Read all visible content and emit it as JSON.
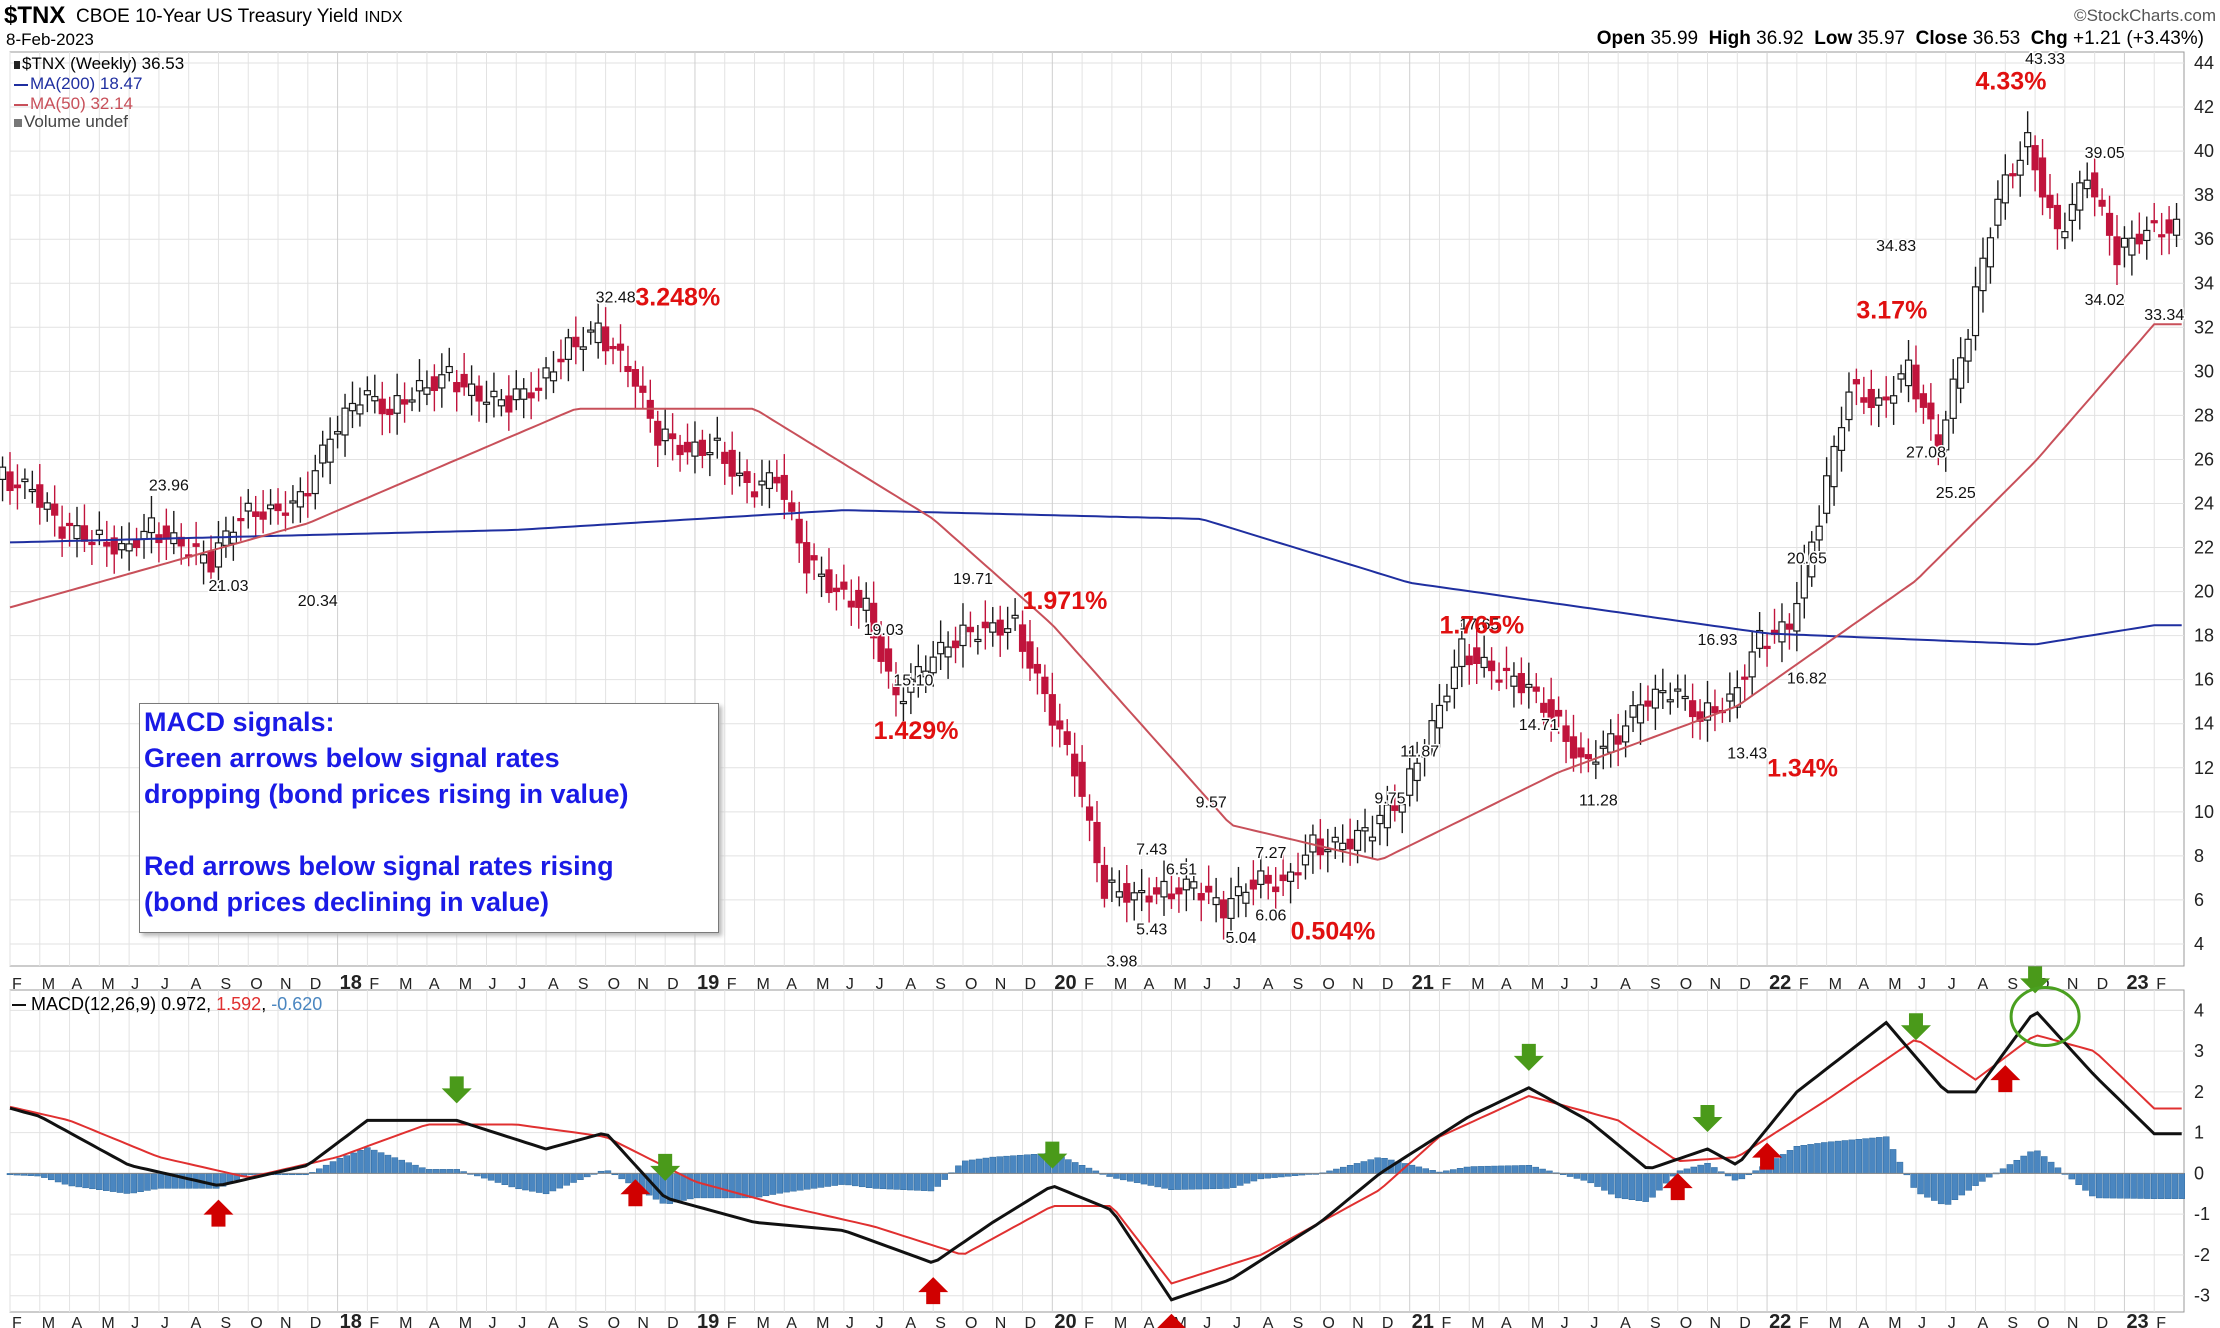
{
  "header": {
    "symbol": "$TNX",
    "name": "CBOE 10-Year US Treasury Yield",
    "exchange": "INDX",
    "date": "8-Feb-2023",
    "copyright": "©StockCharts.com",
    "open_label": "Open",
    "open": "35.99",
    "high_label": "High",
    "high": "36.92",
    "low_label": "Low",
    "low": "35.97",
    "close_label": "Close",
    "close": "36.53",
    "chg_label": "Chg",
    "chg": "+1.21 (+3.43%)"
  },
  "legend": {
    "price": "$TNX (Weekly) 36.53",
    "ma200": "MA(200) 18.47",
    "ma50": "MA(50) 32.14",
    "volume": "Volume undef"
  },
  "colors": {
    "candle_up": "#1a1a1a",
    "candle_down": "#c0143c",
    "ma200": "#1f2fa0",
    "ma50": "#c8505a",
    "macd_line": "#111111",
    "signal_line": "#e03030",
    "histogram": "#4a86c0",
    "annotation_red": "#e01010",
    "annotation_blue": "#1a1ae6",
    "arrow_green": "#4a9a1a",
    "arrow_red": "#d00000",
    "grid": "#e2e2e2"
  },
  "note": {
    "line1": "MACD signals:",
    "line2": "Green arrows below signal rates",
    "line3": "dropping (bond prices rising in value)",
    "line4": "",
    "line5": "Red arrows below signal rates rising",
    "line6": "(bond prices declining in value)"
  },
  "macd_legend": {
    "label": "MACD(12,26,9)",
    "macd": "0.972",
    "signal": "1.592",
    "hist": "-0.620"
  },
  "chart_data": [
    {
      "type": "line",
      "title": "$TNX (Weekly)",
      "y_axis_side": "right",
      "ylim": [
        3,
        44.5
      ],
      "y_ticks": [
        4,
        6,
        8,
        10,
        12,
        14,
        16,
        18,
        20,
        22,
        24,
        26,
        28,
        30,
        32,
        34,
        36,
        38,
        40,
        42,
        44
      ],
      "x_ticks": [
        "F",
        "M",
        "A",
        "M",
        "J",
        "J",
        "A",
        "S",
        "O",
        "N",
        "D",
        "18",
        "F",
        "M",
        "A",
        "M",
        "J",
        "J",
        "A",
        "S",
        "O",
        "N",
        "D",
        "19",
        "F",
        "M",
        "A",
        "M",
        "J",
        "J",
        "A",
        "S",
        "O",
        "N",
        "D",
        "20",
        "F",
        "M",
        "A",
        "M",
        "J",
        "J",
        "A",
        "S",
        "O",
        "N",
        "D",
        "21",
        "F",
        "M",
        "A",
        "M",
        "J",
        "J",
        "A",
        "S",
        "O",
        "N",
        "D",
        "22",
        "F",
        "M",
        "A",
        "M",
        "J",
        "J",
        "A",
        "S",
        "O",
        "N",
        "D",
        "23",
        "F"
      ],
      "x_year_ticks": [
        "18",
        "19",
        "20",
        "21",
        "22",
        "23"
      ],
      "x_range": [
        "2017-01",
        "2023-02"
      ],
      "grid": true,
      "series": [
        {
          "name": "$TNX (Weekly)",
          "style": "candlestick",
          "x": [
            "2017-01",
            "2017-02",
            "2017-03",
            "2017-04",
            "2017-05",
            "2017-06",
            "2017-07",
            "2017-08",
            "2017-09",
            "2017-10",
            "2017-11",
            "2017-12",
            "2018-01",
            "2018-02",
            "2018-03",
            "2018-04",
            "2018-05",
            "2018-06",
            "2018-07",
            "2018-08",
            "2018-09",
            "2018-10",
            "2018-11",
            "2018-12",
            "2019-01",
            "2019-02",
            "2019-03",
            "2019-04",
            "2019-05",
            "2019-06",
            "2019-07",
            "2019-08",
            "2019-09",
            "2019-10",
            "2019-11",
            "2019-12",
            "2020-01",
            "2020-02",
            "2020-03",
            "2020-04",
            "2020-05",
            "2020-06",
            "2020-07",
            "2020-08",
            "2020-09",
            "2020-10",
            "2020-11",
            "2020-12",
            "2021-01",
            "2021-02",
            "2021-03",
            "2021-04",
            "2021-05",
            "2021-06",
            "2021-07",
            "2021-08",
            "2021-09",
            "2021-10",
            "2021-11",
            "2021-12",
            "2022-01",
            "2022-02",
            "2022-03",
            "2022-04",
            "2022-05",
            "2022-06",
            "2022-07",
            "2022-08",
            "2022-09",
            "2022-10",
            "2022-11",
            "2022-12",
            "2023-01",
            "2023-02"
          ],
          "values": [
            24.2,
            25.2,
            24.5,
            22.8,
            22.5,
            22.0,
            22.9,
            22.0,
            21.3,
            23.6,
            23.7,
            24.1,
            26.9,
            28.9,
            28.3,
            29.3,
            29.8,
            28.7,
            28.6,
            29.4,
            31.2,
            31.8,
            30.1,
            27.1,
            26.5,
            26.6,
            24.6,
            25.1,
            21.3,
            20.1,
            19.3,
            15.0,
            16.6,
            17.9,
            18.4,
            18.5,
            15.1,
            11.9,
            6.5,
            6.3,
            6.4,
            6.6,
            5.5,
            6.9,
            6.8,
            8.5,
            8.4,
            9.2,
            10.7,
            14.0,
            17.4,
            16.3,
            15.8,
            14.5,
            12.3,
            13.1,
            14.8,
            15.5,
            14.4,
            15.1,
            17.8,
            18.3,
            23.4,
            29.3,
            28.5,
            30.1,
            26.5,
            31.9,
            38.0,
            40.5,
            36.1,
            38.8,
            35.3,
            36.53
          ]
        },
        {
          "name": "MA(200)",
          "x": [
            "2017-01",
            "2018-07",
            "2019-06",
            "2020-06",
            "2021-01",
            "2022-01",
            "2022-10",
            "2023-02"
          ],
          "values": [
            22.2,
            22.8,
            23.7,
            23.3,
            20.4,
            18.1,
            17.6,
            18.47
          ]
        },
        {
          "name": "MA(50)",
          "x": [
            "2017-01",
            "2017-12",
            "2018-09",
            "2019-03",
            "2019-09",
            "2020-01",
            "2020-07",
            "2020-12",
            "2021-06",
            "2021-12",
            "2022-06",
            "2022-10",
            "2023-02"
          ],
          "values": [
            18.9,
            23.1,
            28.3,
            28.3,
            23.3,
            18.5,
            9.4,
            7.8,
            11.8,
            14.8,
            20.5,
            25.9,
            32.14
          ]
        }
      ],
      "point_labels": [
        {
          "x": "2017-09",
          "value": 21.03,
          "text": "21.03"
        },
        {
          "x": "2017-12",
          "value": 20.34,
          "text": "20.34"
        },
        {
          "x": "2017-07",
          "value": 23.96,
          "text": "23.96"
        },
        {
          "x": "2018-10",
          "value": 32.48,
          "text": "32.48"
        },
        {
          "x": "2019-08",
          "value": 15.1,
          "text": "15.10"
        },
        {
          "x": "2019-07",
          "value": 19.03,
          "text": "19.03"
        },
        {
          "x": "2019-10",
          "value": 19.71,
          "text": "19.71"
        },
        {
          "x": "2020-03",
          "value": 3.98,
          "text": "3.98"
        },
        {
          "x": "2020-04",
          "value": 5.43,
          "text": "5.43"
        },
        {
          "x": "2020-04",
          "value": 7.43,
          "text": "7.43"
        },
        {
          "x": "2020-06",
          "value": 9.57,
          "text": "9.57"
        },
        {
          "x": "2020-05",
          "value": 6.51,
          "text": "6.51"
        },
        {
          "x": "2020-07",
          "value": 5.04,
          "text": "5.04"
        },
        {
          "x": "2020-08",
          "value": 6.06,
          "text": "6.06"
        },
        {
          "x": "2020-08",
          "value": 7.27,
          "text": "7.27"
        },
        {
          "x": "2020-12",
          "value": 9.75,
          "text": "9.75"
        },
        {
          "x": "2021-01",
          "value": 11.87,
          "text": "11.87"
        },
        {
          "x": "2021-03",
          "value": 17.65,
          "text": "17.65"
        },
        {
          "x": "2021-05",
          "value": 14.71,
          "text": "14.71"
        },
        {
          "x": "2021-07",
          "value": 11.28,
          "text": "11.28"
        },
        {
          "x": "2021-11",
          "value": 16.93,
          "text": "16.93"
        },
        {
          "x": "2021-12",
          "value": 13.43,
          "text": "13.43"
        },
        {
          "x": "2022-02",
          "value": 20.65,
          "text": "20.65"
        },
        {
          "x": "2022-02",
          "value": 16.82,
          "text": "16.82"
        },
        {
          "x": "2022-05",
          "value": 34.83,
          "text": "34.83"
        },
        {
          "x": "2022-06",
          "value": 27.08,
          "text": "27.08"
        },
        {
          "x": "2022-07",
          "value": 25.25,
          "text": "25.25"
        },
        {
          "x": "2022-10",
          "value": 43.33,
          "text": "43.33"
        },
        {
          "x": "2022-12",
          "value": 39.05,
          "text": "39.05"
        },
        {
          "x": "2022-12",
          "value": 34.02,
          "text": "34.02"
        },
        {
          "x": "2023-02",
          "value": 33.34,
          "text": "33.34"
        }
      ],
      "annotations": [
        "3.248%",
        "1.429%",
        "1.971%",
        "0.504%",
        "1.765%",
        "1.34%",
        "3.17%",
        "4.33%"
      ]
    },
    {
      "type": "line",
      "title": "MACD(12,26,9)",
      "y_axis_side": "right",
      "ylim": [
        -3.4,
        4.5
      ],
      "y_ticks": [
        -3,
        -2,
        -1,
        0,
        1,
        2,
        3,
        4
      ],
      "x_range": [
        "2017-01",
        "2023-02"
      ],
      "grid": true,
      "series": [
        {
          "name": "MACD",
          "x": [
            "2017-01",
            "2017-03",
            "2017-06",
            "2017-09",
            "2017-12",
            "2018-02",
            "2018-05",
            "2018-08",
            "2018-10",
            "2018-12",
            "2019-03",
            "2019-06",
            "2019-09",
            "2019-11",
            "2020-01",
            "2020-03",
            "2020-05",
            "2020-07",
            "2020-10",
            "2020-12",
            "2021-03",
            "2021-05",
            "2021-07",
            "2021-09",
            "2021-11",
            "2021-12",
            "2022-02",
            "2022-05",
            "2022-07",
            "2022-08",
            "2022-10",
            "2022-12",
            "2023-02"
          ],
          "values": [
            1.8,
            1.4,
            0.2,
            -0.3,
            0.2,
            1.3,
            1.3,
            0.6,
            1.0,
            -0.6,
            -1.2,
            -1.4,
            -2.2,
            -1.2,
            -0.3,
            -0.9,
            -3.1,
            -2.6,
            -1.2,
            0.0,
            1.4,
            2.1,
            1.3,
            0.1,
            0.6,
            0.2,
            2.0,
            3.7,
            2.0,
            2.0,
            4.0,
            2.4,
            0.972
          ]
        },
        {
          "name": "Signal",
          "x": [
            "2017-01",
            "2017-04",
            "2017-07",
            "2017-10",
            "2018-01",
            "2018-04",
            "2018-07",
            "2018-10",
            "2019-01",
            "2019-04",
            "2019-07",
            "2019-10",
            "2020-01",
            "2020-03",
            "2020-05",
            "2020-08",
            "2020-12",
            "2021-02",
            "2021-05",
            "2021-08",
            "2021-10",
            "2021-12",
            "2022-03",
            "2022-06",
            "2022-08",
            "2022-10",
            "2022-12",
            "2023-02"
          ],
          "values": [
            1.8,
            1.3,
            0.4,
            -0.1,
            0.4,
            1.2,
            1.2,
            0.9,
            -0.2,
            -0.8,
            -1.3,
            -2.0,
            -0.8,
            -0.8,
            -2.7,
            -2.0,
            -0.4,
            0.9,
            1.9,
            1.3,
            0.3,
            0.4,
            1.8,
            3.3,
            2.3,
            3.4,
            3.0,
            1.592
          ]
        },
        {
          "name": "Histogram",
          "style": "bar"
        }
      ],
      "arrows": [
        {
          "x": "2017-01",
          "color": "green",
          "dir": "down"
        },
        {
          "x": "2017-09",
          "color": "red",
          "dir": "up"
        },
        {
          "x": "2018-05",
          "color": "green",
          "dir": "down"
        },
        {
          "x": "2018-11",
          "color": "red",
          "dir": "up"
        },
        {
          "x": "2018-12",
          "color": "green",
          "dir": "down"
        },
        {
          "x": "2019-09",
          "color": "red",
          "dir": "up"
        },
        {
          "x": "2020-01",
          "color": "green",
          "dir": "down"
        },
        {
          "x": "2020-05",
          "color": "red",
          "dir": "up"
        },
        {
          "x": "2021-05",
          "color": "green",
          "dir": "down"
        },
        {
          "x": "2021-10",
          "color": "red",
          "dir": "up"
        },
        {
          "x": "2021-11",
          "color": "green",
          "dir": "down"
        },
        {
          "x": "2022-01",
          "color": "red",
          "dir": "up"
        },
        {
          "x": "2022-06",
          "color": "green",
          "dir": "down"
        },
        {
          "x": "2022-09",
          "color": "red",
          "dir": "up"
        },
        {
          "x": "2022-10",
          "color": "green",
          "dir": "down"
        }
      ]
    }
  ]
}
